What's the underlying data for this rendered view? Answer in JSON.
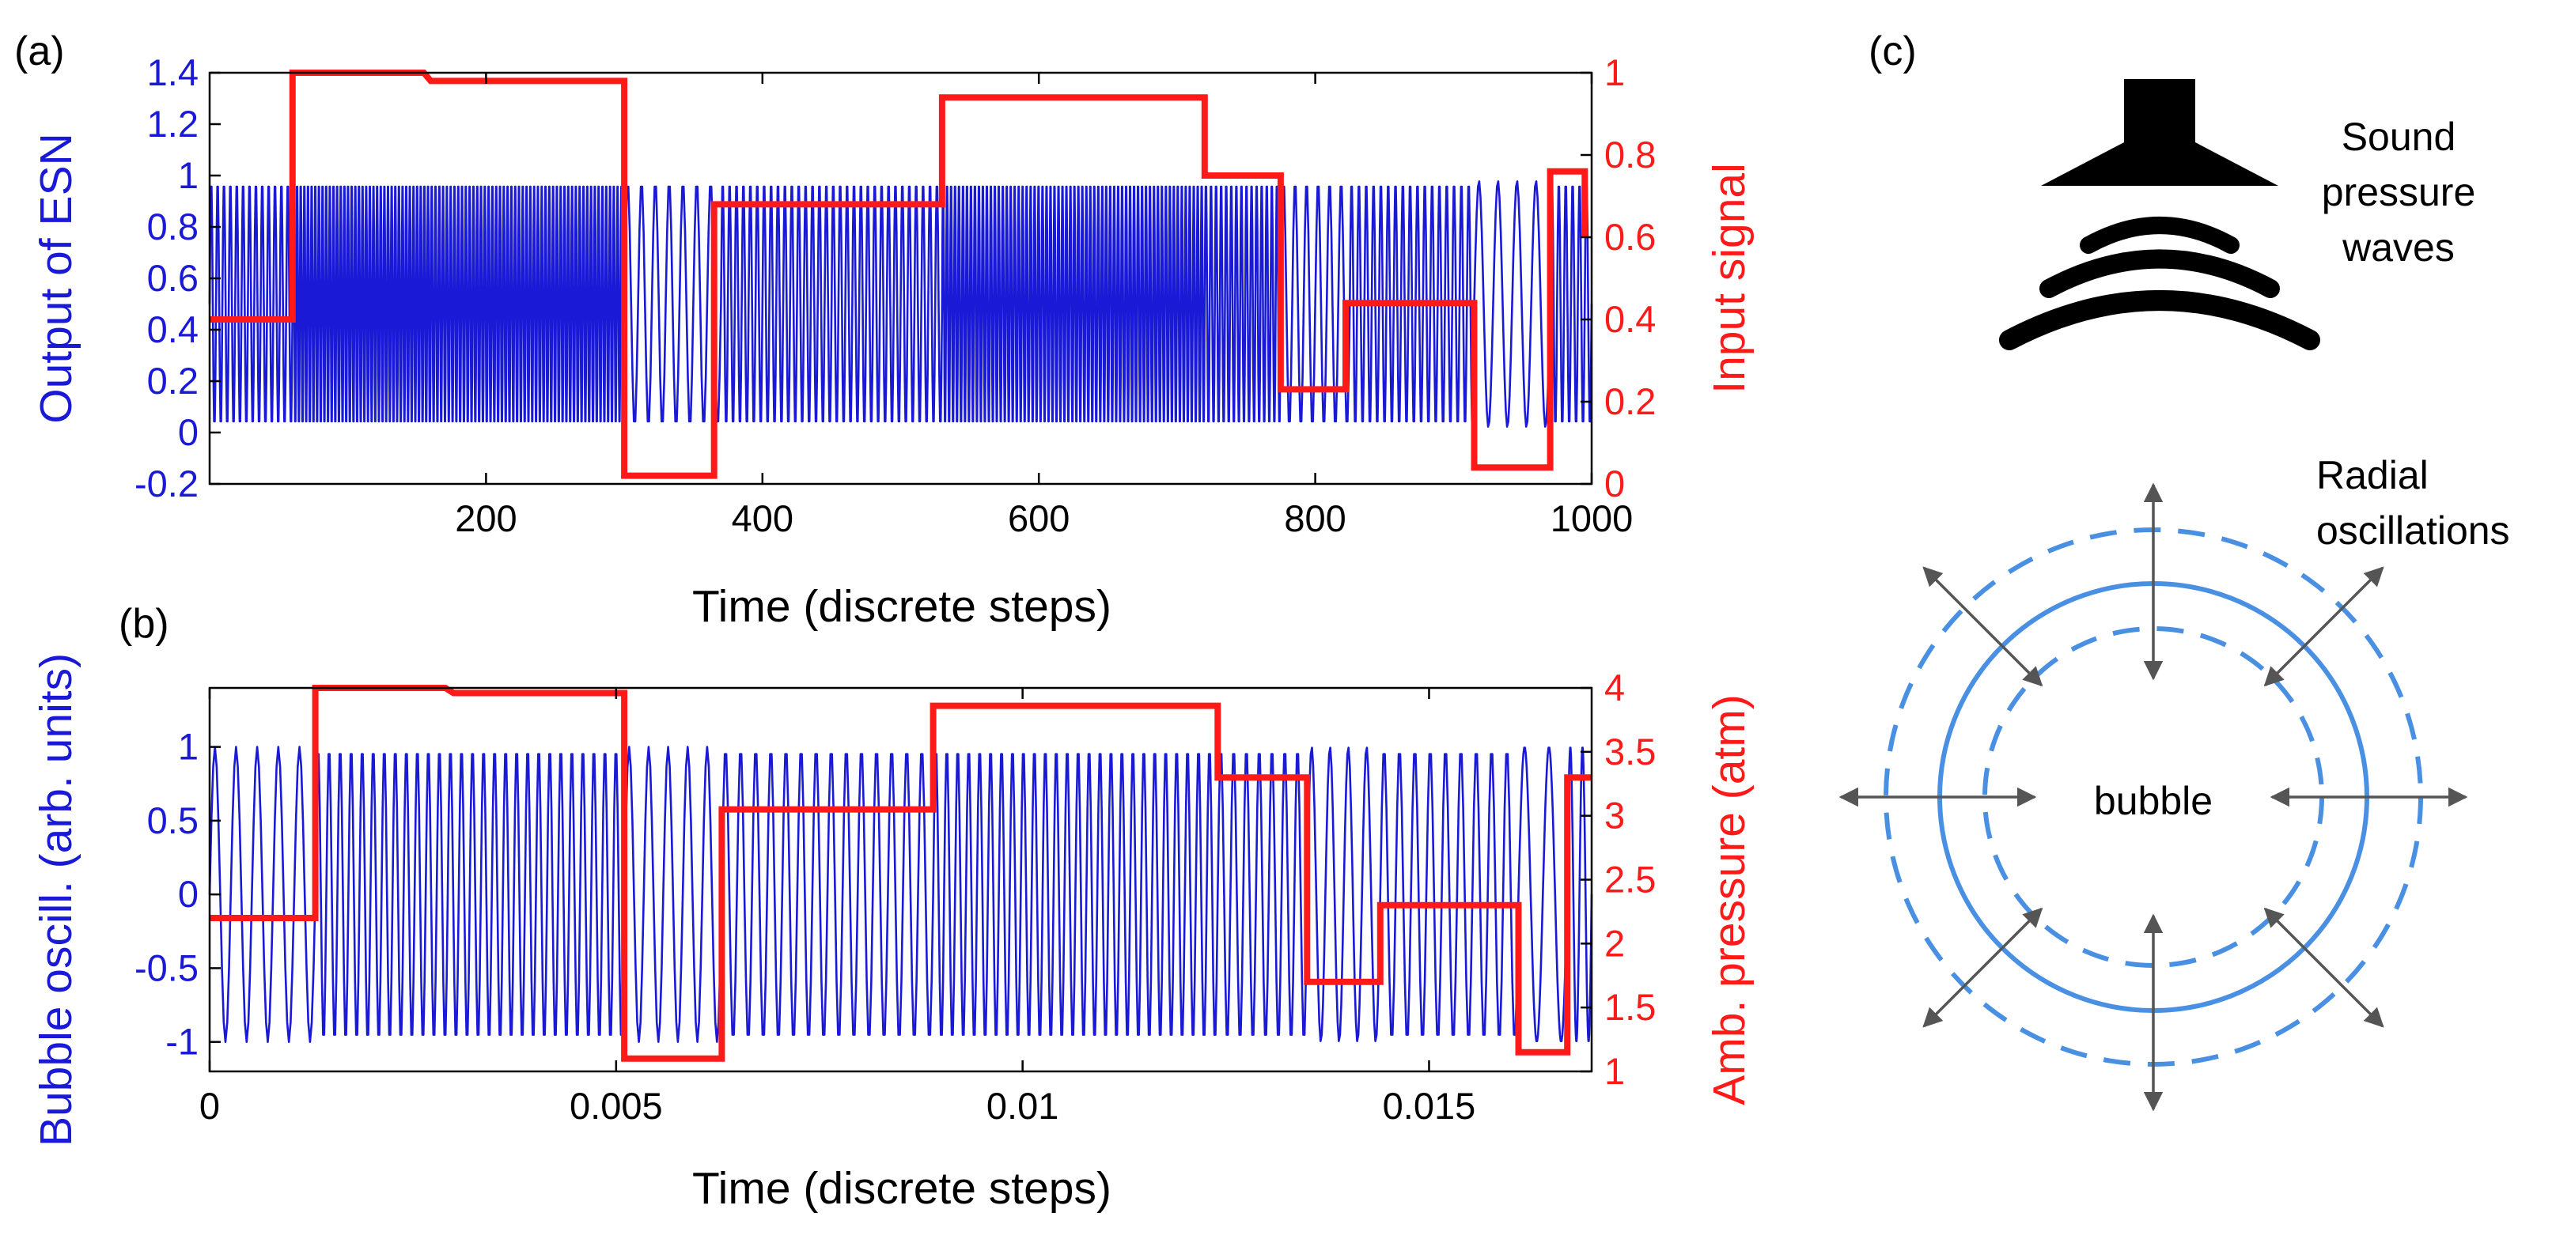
{
  "colors": {
    "output": "#1a1ad6",
    "input": "#ff1a1a",
    "axis": "#000000",
    "bubble": "#4a90e2",
    "arrow": "#555555"
  },
  "panel_labels": {
    "a": "(a)",
    "b": "(b)",
    "c": "(c)"
  },
  "schematic": {
    "sound_line1": "Sound",
    "sound_line2": "pressure",
    "sound_line3": "waves",
    "radial_line1": "Radial",
    "radial_line2": "oscillations",
    "bubble_label": "bubble",
    "icons": [
      "speaker-icon",
      "sound-wave-icon",
      "bubble-icon"
    ]
  },
  "chart_data": [
    {
      "id": "a",
      "type": "line",
      "xlabel": "Time (discrete steps)",
      "ylabel_left": "Output of ESN",
      "ylabel_right": "Input signal",
      "xlim": [
        0,
        1000
      ],
      "ylim_left": [
        -0.2,
        1.4
      ],
      "ylim_right": [
        0,
        1
      ],
      "xticks": [
        {
          "v": 200,
          "label": "200"
        },
        {
          "v": 400,
          "label": "400"
        },
        {
          "v": 600,
          "label": "600"
        },
        {
          "v": 800,
          "label": "800"
        },
        {
          "v": 1000,
          "label": "1000"
        }
      ],
      "yticks_left": [
        {
          "v": -0.2,
          "label": "-0.2"
        },
        {
          "v": 0,
          "label": "0"
        },
        {
          "v": 0.2,
          "label": "0.2"
        },
        {
          "v": 0.4,
          "label": "0.4"
        },
        {
          "v": 0.6,
          "label": "0.6"
        },
        {
          "v": 0.8,
          "label": "0.8"
        },
        {
          "v": 1,
          "label": "1"
        },
        {
          "v": 1.2,
          "label": "1.2"
        },
        {
          "v": 1.4,
          "label": "1.4"
        }
      ],
      "yticks_right": [
        {
          "v": 0,
          "label": "0"
        },
        {
          "v": 0.2,
          "label": "0.2"
        },
        {
          "v": 0.4,
          "label": "0.4"
        },
        {
          "v": 0.6,
          "label": "0.6"
        },
        {
          "v": 0.8,
          "label": "0.8"
        },
        {
          "v": 1,
          "label": "1"
        }
      ],
      "series": [
        {
          "name": "Output of ESN",
          "axis": "left",
          "kind": "oscillation",
          "center": 0.5,
          "amplitude": 0.48,
          "segments": [
            {
              "start": 0,
              "end": 60,
              "cycles": 13
            },
            {
              "start": 60,
              "end": 160,
              "cycles": 38
            },
            {
              "start": 160,
              "end": 300,
              "cycles": 51
            },
            {
              "start": 300,
              "end": 370,
              "cycles": 7
            },
            {
              "start": 370,
              "end": 530,
              "cycles": 32
            },
            {
              "start": 530,
              "end": 720,
              "cycles": 66
            },
            {
              "start": 720,
              "end": 775,
              "cycles": 15
            },
            {
              "start": 775,
              "end": 825,
              "cycles": 6
            },
            {
              "start": 825,
              "end": 915,
              "cycles": 17
            },
            {
              "start": 915,
              "end": 970,
              "cycles": 4
            },
            {
              "start": 970,
              "end": 1000,
              "cycles": 6
            }
          ]
        },
        {
          "name": "Input signal",
          "axis": "right",
          "kind": "step",
          "points": [
            [
              0,
              0.4
            ],
            [
              60,
              0.4
            ],
            [
              60,
              1.0
            ],
            [
              155,
              1.0
            ],
            [
              160,
              0.98
            ],
            [
              300,
              0.98
            ],
            [
              300,
              0.02
            ],
            [
              365,
              0.02
            ],
            [
              365,
              0.68
            ],
            [
              530,
              0.68
            ],
            [
              530,
              0.94
            ],
            [
              720,
              0.94
            ],
            [
              720,
              0.75
            ],
            [
              775,
              0.75
            ],
            [
              775,
              0.23
            ],
            [
              822,
              0.23
            ],
            [
              822,
              0.44
            ],
            [
              915,
              0.44
            ],
            [
              915,
              0.04
            ],
            [
              970,
              0.04
            ],
            [
              970,
              0.76
            ],
            [
              995,
              0.76
            ],
            [
              995,
              0.6
            ]
          ]
        }
      ]
    },
    {
      "id": "b",
      "type": "line",
      "xlabel": "Time (discrete steps)",
      "ylabel_left": "Bubble oscill. (arb. units)",
      "ylabel_right": "Amb. pressure (atm)",
      "xlim": [
        0,
        0.017
      ],
      "ylim_left": [
        -1.2,
        1.4
      ],
      "ylim_right": [
        1,
        4
      ],
      "xticks": [
        {
          "v": 0,
          "label": "0"
        },
        {
          "v": 0.005,
          "label": "0.005"
        },
        {
          "v": 0.01,
          "label": "0.01"
        },
        {
          "v": 0.015,
          "label": "0.015"
        }
      ],
      "yticks_left": [
        {
          "v": -1,
          "label": "-1"
        },
        {
          "v": -0.5,
          "label": "-0.5"
        },
        {
          "v": 0,
          "label": "0"
        },
        {
          "v": 0.5,
          "label": "0.5"
        },
        {
          "v": 1,
          "label": "1"
        }
      ],
      "yticks_right": [
        {
          "v": 1,
          "label": "1"
        },
        {
          "v": 1.5,
          "label": "1.5"
        },
        {
          "v": 2,
          "label": "2"
        },
        {
          "v": 2.5,
          "label": "2.5"
        },
        {
          "v": 3,
          "label": "3"
        },
        {
          "v": 3.5,
          "label": "3.5"
        },
        {
          "v": 4,
          "label": "4"
        }
      ],
      "series": [
        {
          "name": "Bubble oscillation",
          "axis": "left",
          "kind": "oscillation",
          "center": 0,
          "amplitude": 1,
          "segments": [
            {
              "start": 0,
              "end": 0.0013,
              "cycles": 5
            },
            {
              "start": 0.0013,
              "end": 0.0051,
              "cycles": 28
            },
            {
              "start": 0.0051,
              "end": 0.0063,
              "cycles": 5
            },
            {
              "start": 0.0063,
              "end": 0.0089,
              "cycles": 14
            },
            {
              "start": 0.0089,
              "end": 0.0124,
              "cycles": 26
            },
            {
              "start": 0.0124,
              "end": 0.0135,
              "cycles": 7
            },
            {
              "start": 0.0135,
              "end": 0.0144,
              "cycles": 4
            },
            {
              "start": 0.0144,
              "end": 0.0161,
              "cycles": 9
            },
            {
              "start": 0.0161,
              "end": 0.0167,
              "cycles": 2
            },
            {
              "start": 0.0167,
              "end": 0.017,
              "cycles": 2
            }
          ]
        },
        {
          "name": "Amb. pressure",
          "axis": "right",
          "kind": "step",
          "points": [
            [
              0,
              2.2
            ],
            [
              0.0013,
              2.2
            ],
            [
              0.0013,
              4.0
            ],
            [
              0.0029,
              4.0
            ],
            [
              0.003,
              3.96
            ],
            [
              0.0051,
              3.96
            ],
            [
              0.0051,
              1.1
            ],
            [
              0.0063,
              1.1
            ],
            [
              0.0063,
              3.05
            ],
            [
              0.0089,
              3.05
            ],
            [
              0.0089,
              3.86
            ],
            [
              0.0124,
              3.86
            ],
            [
              0.0124,
              3.3
            ],
            [
              0.0135,
              3.3
            ],
            [
              0.0135,
              1.7
            ],
            [
              0.0144,
              1.7
            ],
            [
              0.0144,
              2.3
            ],
            [
              0.0161,
              2.3
            ],
            [
              0.0161,
              1.15
            ],
            [
              0.0167,
              1.15
            ],
            [
              0.0167,
              3.3
            ],
            [
              0.017,
              3.3
            ]
          ]
        }
      ]
    }
  ]
}
